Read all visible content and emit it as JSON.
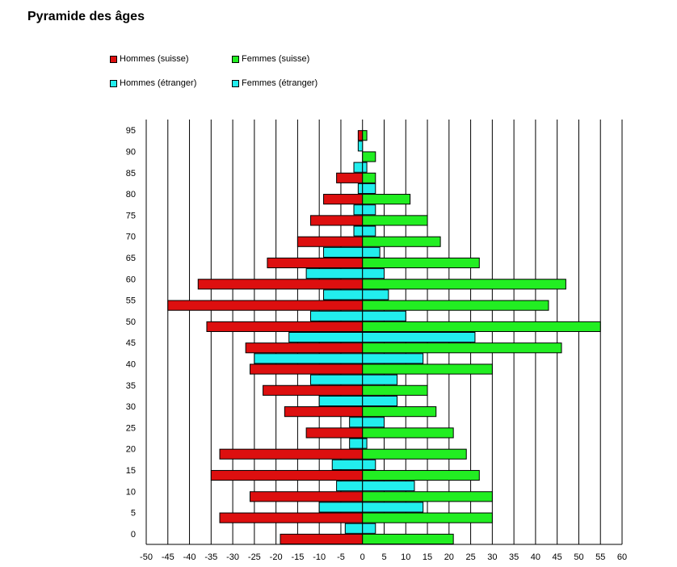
{
  "title": "Pyramide des âges",
  "legend": {
    "men_swiss": "Hommes (suisse)",
    "women_swiss": "Femmes (suisse)",
    "men_foreign": "Hommes (étranger)",
    "women_foreign": "Femmes (étranger)"
  },
  "colors": {
    "men_swiss": "#dd0f0f",
    "women_swiss": "#22ee22",
    "men_foreign": "#22eeee",
    "women_foreign": "#22eeee"
  },
  "chart_data": {
    "type": "bar",
    "orientation": "horizontal",
    "categories": [
      "0",
      "5",
      "10",
      "15",
      "20",
      "25",
      "30",
      "35",
      "40",
      "45",
      "50",
      "55",
      "60",
      "65",
      "70",
      "75",
      "80",
      "85",
      "90",
      "95"
    ],
    "x_ticks": [
      -50,
      -45,
      -40,
      -35,
      -30,
      -25,
      -20,
      -15,
      -10,
      -5,
      0,
      5,
      10,
      15,
      20,
      25,
      30,
      35,
      40,
      45,
      50,
      55,
      60
    ],
    "xlim": [
      -50,
      60
    ],
    "grid": true,
    "legend_position": "top-left",
    "series": [
      {
        "name": "Hommes (suisse)",
        "values": [
          -19,
          -33,
          -26,
          -35,
          -33,
          -13,
          -18,
          -23,
          -26,
          -27,
          -36,
          -45,
          -38,
          -22,
          -15,
          -12,
          -9,
          -6,
          0,
          -1
        ]
      },
      {
        "name": "Femmes (suisse)",
        "values": [
          21,
          30,
          30,
          27,
          24,
          21,
          17,
          15,
          30,
          46,
          55,
          43,
          47,
          27,
          18,
          15,
          11,
          3,
          3,
          1
        ]
      },
      {
        "name": "Hommes (étranger)",
        "values": [
          -4,
          -10,
          -6,
          -7,
          -3,
          -3,
          -10,
          -12,
          -25,
          -17,
          -12,
          -9,
          -13,
          -9,
          -2,
          -2,
          -1,
          -2,
          -1,
          0
        ]
      },
      {
        "name": "Femmes (étranger)",
        "values": [
          3,
          14,
          12,
          3,
          1,
          5,
          8,
          8,
          14,
          26,
          10,
          6,
          5,
          4,
          3,
          3,
          3,
          1,
          0,
          0
        ]
      }
    ]
  }
}
